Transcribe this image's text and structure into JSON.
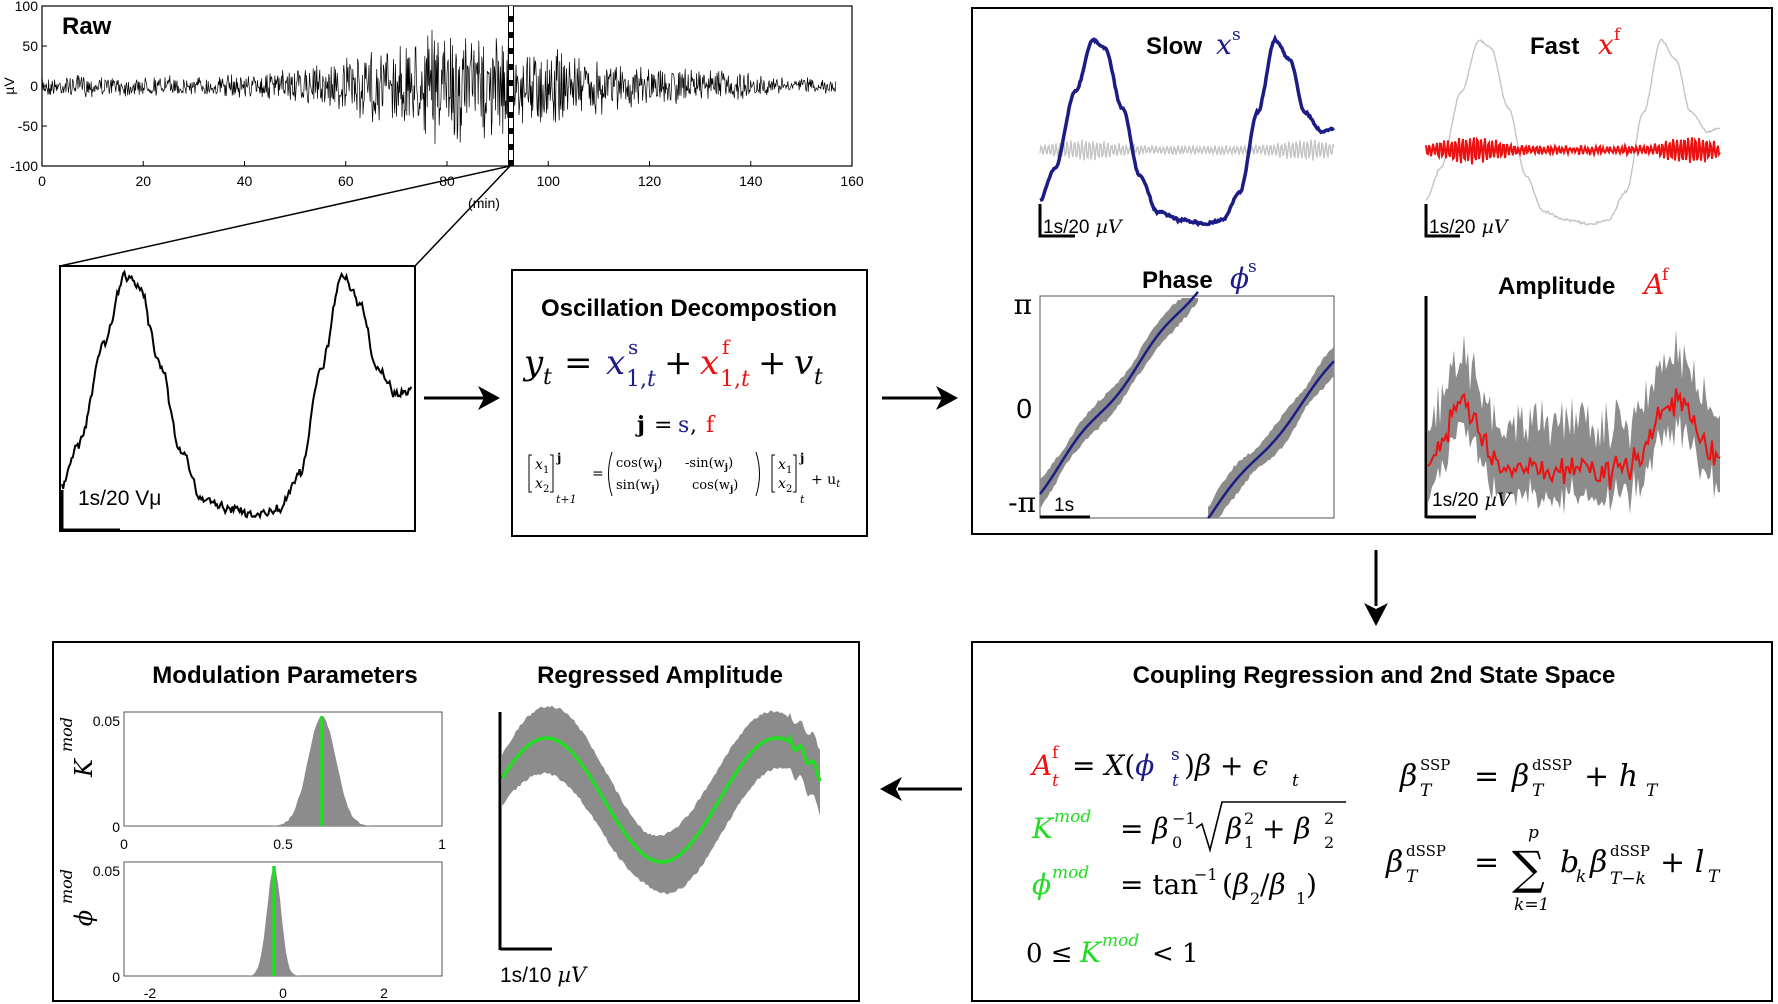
{
  "colors": {
    "slow": "#1c1c87",
    "fast": "#ee1111",
    "modulation": "#22dd22",
    "band": "#8c8c8c",
    "light": "#c4c4c4"
  },
  "raw": {
    "title": "Raw",
    "y_unit": "µV",
    "x_unit": "(min)",
    "x_ticks": [
      "0",
      "20",
      "40",
      "60",
      "80",
      "100",
      "120",
      "140",
      "160"
    ],
    "y_ticks": [
      "100",
      "50",
      "0",
      "-50",
      "-100"
    ],
    "zoom_scale": "1s/20 Vμ"
  },
  "decomposition": {
    "title": "Oscillation Decompostion",
    "j_symbol": "j",
    "j_equals": "=",
    "j_s": "s",
    "j_comma": ",",
    "j_f": "f",
    "cos": "cos(w",
    "minus_sin": "-sin(w",
    "sin": "sin(w",
    "close": ")",
    "j_sub": "j",
    "x1": "x",
    "x2": "x",
    "sub_1": "1",
    "sub_2": "2",
    "t1": "t+1",
    "t": "t",
    "plus_u": "+ u",
    "u_sub": "t"
  },
  "components": {
    "slow_title": "Slow",
    "slow_sym": "x",
    "slow_sup": "s",
    "fast_title": "Fast",
    "fast_sym": "x",
    "fast_sup": "f",
    "phase_title": "Phase",
    "phase_sym": "ϕ",
    "phase_sup": "s",
    "amp_title": "Amplitude",
    "amp_sym": "A",
    "amp_sup": "f",
    "scale_1": "1s/20",
    "scale_unit": "µV",
    "phase_ticks": [
      "π",
      "0",
      "-π"
    ],
    "phase_scale": "1s",
    "amp_scale": "1s/20"
  },
  "coupling": {
    "title": "Coupling Regression and 2nd State Space",
    "constraint": "0 ≤",
    "constraint_end": "< 1"
  },
  "modulation": {
    "title": "Modulation Parameters",
    "k_label": "K",
    "k_sup": "mod",
    "phi_label": "ϕ",
    "phi_sup": "mod",
    "k_yticks": [
      "0.05",
      "0"
    ],
    "k_xticks": [
      "0",
      "0.5",
      "1"
    ],
    "phi_yticks": [
      "0.05",
      "0"
    ],
    "phi_xticks": [
      "-2",
      "0",
      "2"
    ]
  },
  "regressed": {
    "title": "Regressed Amplitude",
    "scale": "1s/10",
    "scale_unit": "µV"
  }
}
